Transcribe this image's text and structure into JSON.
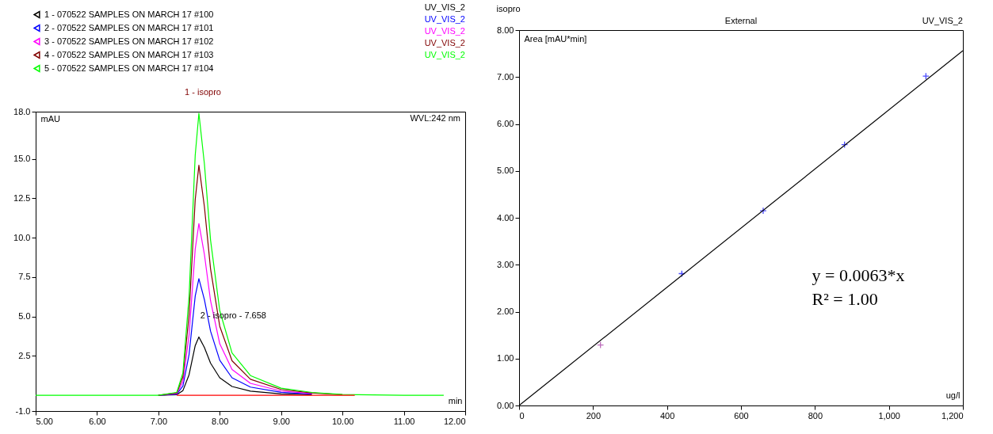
{
  "chart_data": [
    {
      "type": "line",
      "xlabel": "min",
      "ylabel": "mAU",
      "legend": "top left",
      "x": [
        5.0,
        6.0,
        7.0,
        7.3,
        7.4,
        7.5,
        7.6,
        7.66,
        7.75,
        7.85,
        8.0,
        8.2,
        8.5,
        9.0,
        9.5,
        10.0,
        11.0,
        11.65
      ],
      "series": [
        {
          "name": "1 - 070522 SAMPLES ON MARCH 17 #100",
          "color": "#000000",
          "values": [
            null,
            null,
            0,
            0.04,
            0.3,
            1.3,
            3.15,
            3.7,
            3.03,
            2.04,
            1.11,
            0.56,
            0.26,
            0.09,
            0.04,
            null,
            null,
            null
          ]
        },
        {
          "name": "2 - 070522 SAMPLES ON MARCH 17 #101",
          "color": "#0000ff",
          "values": [
            null,
            null,
            0,
            0.07,
            0.59,
            2.59,
            6.29,
            7.4,
            6.07,
            4.07,
            2.22,
            1.11,
            0.52,
            0.19,
            0.07,
            null,
            null,
            null
          ]
        },
        {
          "name": "3 - 070522 SAMPLES ON MARCH 17 #102",
          "color": "#ff00ff",
          "values": [
            null,
            null,
            0,
            0.11,
            0.87,
            3.82,
            9.27,
            10.9,
            8.94,
            6.0,
            3.27,
            1.64,
            0.76,
            0.27,
            0.11,
            null,
            null,
            null
          ]
        },
        {
          "name": "4 - 070522 SAMPLES ON MARCH 17 #103",
          "color": "#800000",
          "values": [
            null,
            null,
            0,
            0.15,
            1.17,
            5.11,
            12.41,
            14.6,
            11.97,
            8.03,
            4.38,
            2.19,
            1.02,
            0.37,
            0.15,
            0.04,
            null,
            null
          ]
        },
        {
          "name": "5 - 070522 SAMPLES ON MARCH 17 #104",
          "color": "#00ff00",
          "values": [
            0,
            0,
            0,
            0.18,
            1.43,
            6.27,
            15.22,
            17.9,
            14.68,
            9.85,
            5.37,
            2.69,
            1.25,
            0.45,
            0.18,
            0.05,
            0,
            0
          ]
        },
        {
          "color": "#ff0000",
          "x": [
            7.3,
            10.2
          ],
          "values": [
            0,
            0
          ]
        }
      ],
      "xlim": [
        5,
        12
      ],
      "xticks": [
        {
          "value": 5,
          "label": "5.00"
        },
        {
          "value": 6,
          "label": "6.00"
        },
        {
          "value": 7,
          "label": "7.00"
        },
        {
          "value": 8,
          "label": "8.00"
        },
        {
          "value": 9,
          "label": "9.00"
        },
        {
          "value": 10,
          "label": "10.00"
        },
        {
          "value": 11,
          "label": "11.00"
        },
        {
          "value": 12,
          "label": "12.00"
        }
      ],
      "ylim": [
        -1,
        18
      ],
      "yticks": [
        {
          "value": -1,
          "label": "-1.0"
        },
        2.5,
        {
          "value": 5,
          "label": "5.0"
        },
        7.5,
        {
          "value": 10,
          "label": "10.0"
        },
        12.5,
        {
          "value": 15,
          "label": "15.0"
        },
        {
          "value": 18,
          "label": "18.0"
        }
      ],
      "annotations": [
        "WVL:242 nm",
        "UV_VIS_2",
        "UV_VIS_2",
        "UV_VIS_2",
        "UV_VIS_2",
        "UV_VIS_2",
        "1 - isopro",
        {
          "text": "2 - isopro - 7.658",
          "x": 7.658,
          "y": 3.9
        }
      ]
    },
    {
      "type": "scatter",
      "title": "isopro",
      "xlabel": "ug/l",
      "ylabel": "Area  [mAU*min]",
      "series": [
        {
          "marker": "cross",
          "x": [
            220,
            440,
            660,
            880,
            1100
          ],
          "values": [
            1.29,
            2.81,
            4.15,
            5.56,
            7.02
          ],
          "colors": [
            "#a0309f",
            "#0000ff",
            "#0000ff",
            "#0000ff",
            "#0000ff"
          ]
        },
        {
          "type": "line",
          "color": "#000000",
          "x": [
            0,
            1200
          ],
          "values": [
            0,
            7.56
          ]
        }
      ],
      "xlim": [
        0,
        1200
      ],
      "xticks": [
        0,
        200,
        400,
        600,
        800,
        {
          "value": 1000,
          "label": "1,000"
        },
        {
          "value": 1200,
          "label": "1,200"
        }
      ],
      "ylim": [
        0,
        8
      ],
      "yticks": [
        {
          "value": 0,
          "label": "0.00"
        },
        {
          "value": 1,
          "label": "1.00"
        },
        {
          "value": 2,
          "label": "2.00"
        },
        {
          "value": 3,
          "label": "3.00"
        },
        {
          "value": 4,
          "label": "4.00"
        },
        {
          "value": 5,
          "label": "5.00"
        },
        {
          "value": 6,
          "label": "6.00"
        },
        {
          "value": 7,
          "label": "7.00"
        },
        {
          "value": 8,
          "label": "8.00"
        }
      ],
      "annotations": [
        "External",
        "UV_VIS_2",
        "y = 0.0063*x",
        "R² = 1.00"
      ]
    }
  ]
}
